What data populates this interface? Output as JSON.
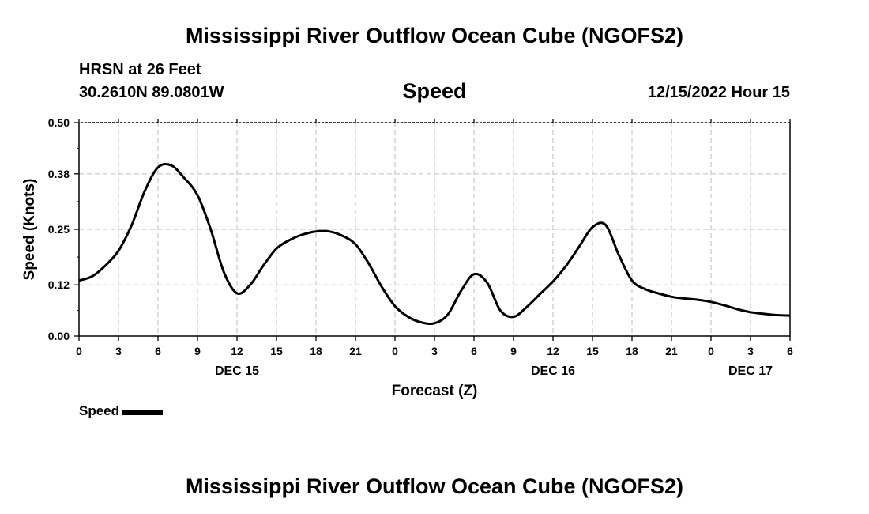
{
  "header": {
    "title": "Mississippi River Outflow Ocean Cube (NGOFS2)",
    "location_name": "HRSN at 26 Feet",
    "location_coords": "30.2610N  89.0801W",
    "variable": "Speed",
    "datetime": "12/15/2022 Hour 15"
  },
  "footer": {
    "title": "Mississippi River Outflow Ocean Cube (NGOFS2)"
  },
  "legend": {
    "label": "Speed",
    "color": "#000000"
  },
  "chart_data": {
    "type": "line",
    "title": "Speed",
    "xlabel": "Forecast (Z)",
    "ylabel": "Speed (Knots)",
    "x_unit": "hours since DEC 15 00Z",
    "xlim": [
      0,
      54
    ],
    "ylim": [
      0,
      0.5
    ],
    "grid": true,
    "legend_position": "bottom-left",
    "y_ticks": [
      "0.00",
      "0.12",
      "0.25",
      "0.38",
      "0.50"
    ],
    "x_ticks": [
      {
        "x": 0,
        "label": "0"
      },
      {
        "x": 3,
        "label": "3"
      },
      {
        "x": 6,
        "label": "6"
      },
      {
        "x": 9,
        "label": "9"
      },
      {
        "x": 12,
        "label": "12"
      },
      {
        "x": 15,
        "label": "15"
      },
      {
        "x": 18,
        "label": "18"
      },
      {
        "x": 21,
        "label": "21"
      },
      {
        "x": 24,
        "label": "0"
      },
      {
        "x": 27,
        "label": "3"
      },
      {
        "x": 30,
        "label": "6"
      },
      {
        "x": 33,
        "label": "9"
      },
      {
        "x": 36,
        "label": "12"
      },
      {
        "x": 39,
        "label": "15"
      },
      {
        "x": 42,
        "label": "18"
      },
      {
        "x": 45,
        "label": "21"
      },
      {
        "x": 48,
        "label": "0"
      },
      {
        "x": 51,
        "label": "3"
      },
      {
        "x": 54,
        "label": "6"
      }
    ],
    "date_labels": [
      {
        "x": 12,
        "label": "DEC 15"
      },
      {
        "x": 36,
        "label": "DEC 16"
      },
      {
        "x": 51,
        "label": "DEC 17"
      }
    ],
    "series": [
      {
        "name": "Speed",
        "color": "#000000",
        "x": [
          0,
          1,
          2,
          3,
          4,
          5,
          6,
          7,
          8,
          9,
          10,
          11,
          12,
          13,
          14,
          15,
          16,
          17,
          18,
          19,
          20,
          21,
          22,
          23,
          24,
          25,
          26,
          27,
          28,
          29,
          30,
          31,
          32,
          33,
          34,
          35,
          36,
          37,
          38,
          39,
          40,
          41,
          42,
          43,
          44,
          45,
          46,
          47,
          48,
          49,
          50,
          51,
          52,
          53,
          54
        ],
        "y": [
          0.13,
          0.14,
          0.165,
          0.2,
          0.26,
          0.34,
          0.395,
          0.4,
          0.37,
          0.33,
          0.25,
          0.15,
          0.1,
          0.12,
          0.165,
          0.205,
          0.225,
          0.238,
          0.245,
          0.245,
          0.235,
          0.215,
          0.17,
          0.115,
          0.07,
          0.045,
          0.032,
          0.03,
          0.05,
          0.105,
          0.145,
          0.125,
          0.06,
          0.045,
          0.068,
          0.098,
          0.128,
          0.165,
          0.21,
          0.255,
          0.26,
          0.19,
          0.13,
          0.11,
          0.1,
          0.092,
          0.088,
          0.085,
          0.08,
          0.072,
          0.063,
          0.056,
          0.052,
          0.049,
          0.048
        ]
      }
    ]
  }
}
